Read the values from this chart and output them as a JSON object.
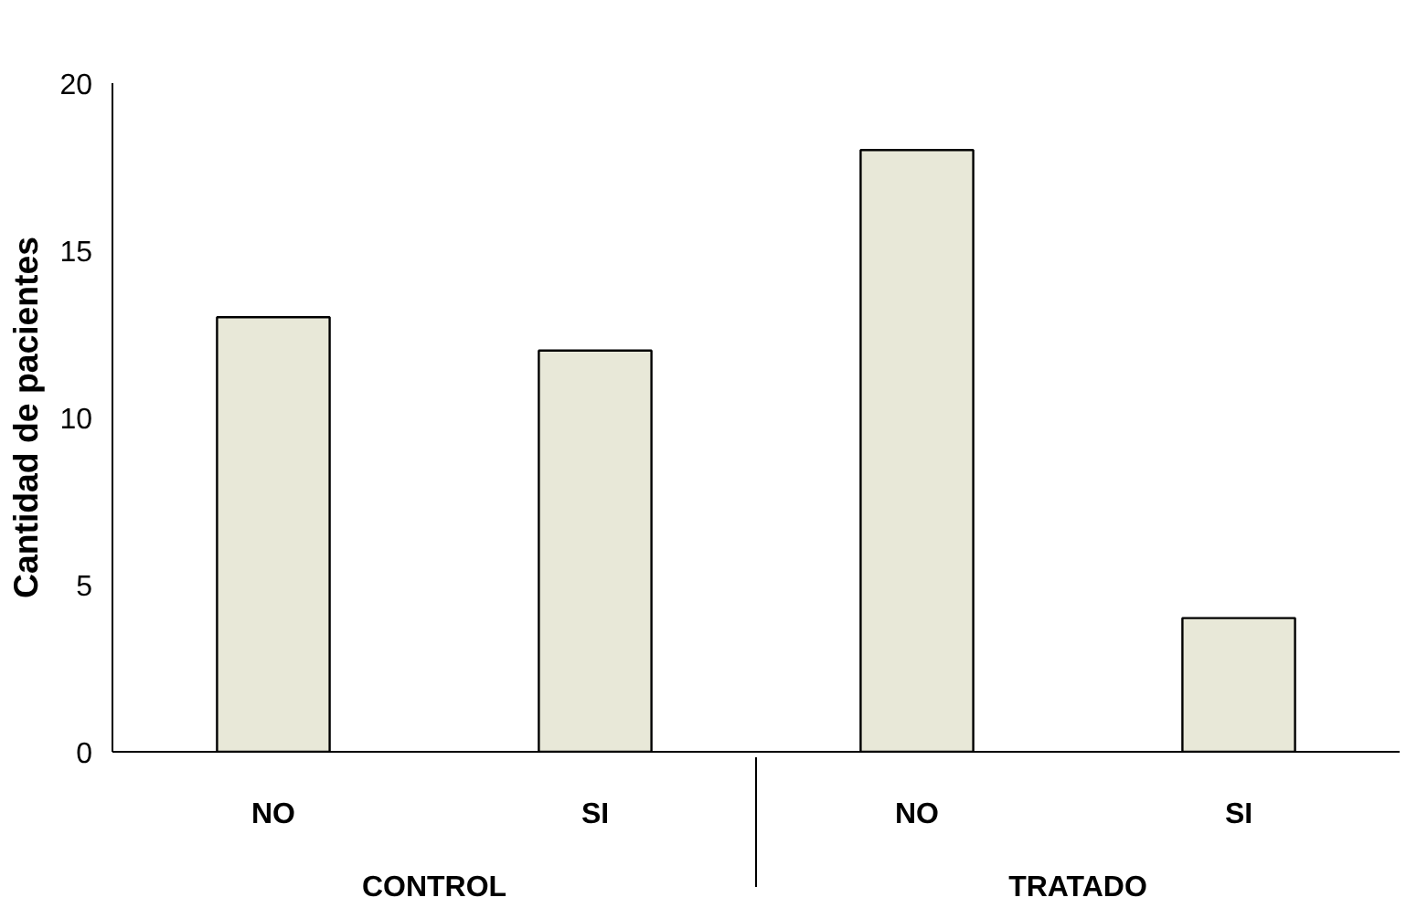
{
  "chart_data": {
    "type": "bar",
    "ylabel": "Cantidad de pacientes",
    "categories": [
      "NO",
      "SI",
      "NO",
      "SI"
    ],
    "annotations": [
      "CONTROL",
      "TRATADO"
    ],
    "values": [
      13,
      12,
      18,
      4
    ],
    "color": "#e8e8d8",
    "ylim": [
      0,
      20
    ],
    "yticks": [
      0,
      5,
      10,
      15,
      20
    ],
    "grid": false
  }
}
